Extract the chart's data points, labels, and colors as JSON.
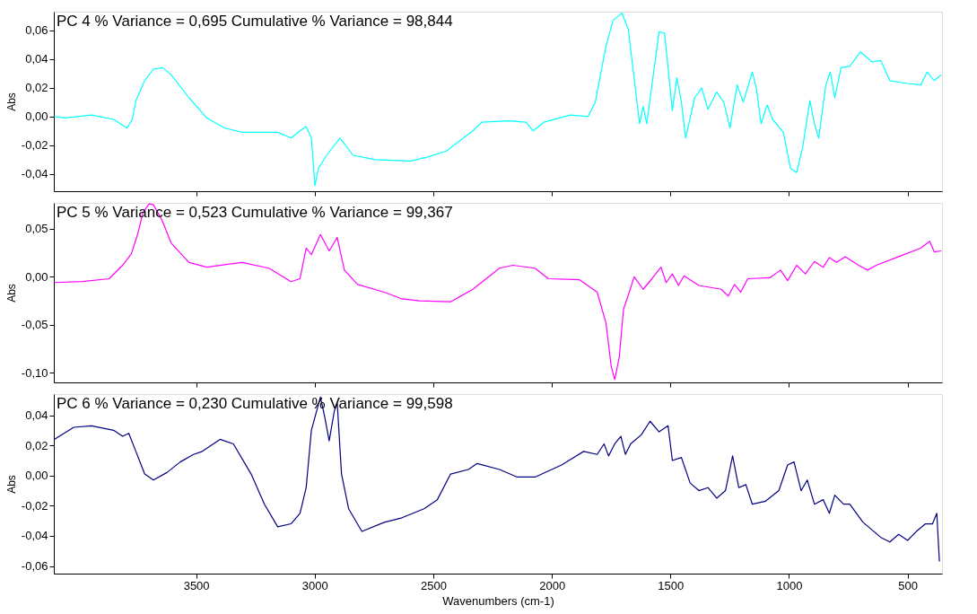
{
  "chart_data": [
    {
      "type": "line",
      "title": "PC 4  % Variance =    0,695 Cumulative % Variance =  98,844",
      "ylabel": "Abs",
      "tick_labels": "y",
      "grid": false,
      "marker": "none",
      "line_style": "solid",
      "xlim": [
        4100,
        355
      ],
      "xticks": [
        3500,
        3000,
        2500,
        2000,
        1500,
        1000,
        500
      ],
      "ylim": [
        -0.052,
        0.073
      ],
      "yticks": [
        {
          "value": 0.06,
          "label": "0,06"
        },
        {
          "value": 0.04,
          "label": "0,04"
        },
        {
          "value": 0.02,
          "label": "0,02"
        },
        {
          "value": 0.0,
          "label": "0,00"
        },
        {
          "value": -0.02,
          "label": "-0,02"
        },
        {
          "value": -0.04,
          "label": "-0,04"
        }
      ],
      "x": [
        4098,
        4050,
        3941,
        3848,
        3792,
        3769,
        3754,
        3717,
        3680,
        3642,
        3605,
        3530,
        3455,
        3380,
        3306,
        3156,
        3100,
        3062,
        3036,
        3014,
        2999,
        2984,
        2950,
        2894,
        2875,
        2838,
        2745,
        2595,
        2520,
        2445,
        2333,
        2296,
        2184,
        2109,
        2079,
        2034,
        1922,
        1847,
        1817,
        1772,
        1742,
        1705,
        1678,
        1641,
        1630,
        1615,
        1600,
        1578,
        1548,
        1525,
        1510,
        1492,
        1473,
        1454,
        1436,
        1398,
        1368,
        1342,
        1305,
        1275,
        1249,
        1219,
        1193,
        1155,
        1137,
        1118,
        1092,
        1069,
        1024,
        994,
        968,
        942,
        912,
        893,
        875,
        845,
        826,
        807,
        781,
        744,
        699,
        650,
        613,
        575,
        500,
        444,
        418,
        388,
        358
      ],
      "series": [
        {
          "color": "#00ffff",
          "values": [
            0.0,
            -0.001,
            0.001,
            -0.002,
            -0.008,
            -0.002,
            0.011,
            0.025,
            0.033,
            0.034,
            0.029,
            0.013,
            -0.001,
            -0.008,
            -0.011,
            -0.011,
            -0.015,
            -0.01,
            -0.007,
            -0.015,
            -0.048,
            -0.036,
            -0.027,
            -0.015,
            -0.019,
            -0.027,
            -0.03,
            -0.031,
            -0.028,
            -0.024,
            -0.01,
            -0.004,
            -0.003,
            -0.004,
            -0.01,
            -0.004,
            0.001,
            0.0,
            0.01,
            0.049,
            0.067,
            0.072,
            0.061,
            0.01,
            -0.005,
            0.007,
            -0.005,
            0.022,
            0.059,
            0.058,
            0.034,
            0.004,
            0.027,
            0.01,
            -0.015,
            0.013,
            0.02,
            0.005,
            0.017,
            0.01,
            -0.008,
            0.022,
            0.01,
            0.031,
            0.019,
            -0.005,
            0.008,
            -0.002,
            -0.011,
            -0.036,
            -0.039,
            -0.021,
            0.011,
            -0.005,
            -0.015,
            0.022,
            0.031,
            0.013,
            0.034,
            0.035,
            0.045,
            0.038,
            0.039,
            0.025,
            0.023,
            0.022,
            0.031,
            0.025,
            0.029
          ]
        }
      ]
    },
    {
      "type": "line",
      "title": "PC 5  % Variance =    0,523 Cumulative % Variance =  99,367",
      "ylabel": "Abs",
      "tick_labels": "y",
      "grid": false,
      "marker": "none",
      "line_style": "solid",
      "xlim": [
        4100,
        355
      ],
      "xticks": [
        3500,
        3000,
        2500,
        2000,
        1500,
        1000,
        500
      ],
      "ylim": [
        -0.11,
        0.077
      ],
      "yticks": [
        {
          "value": 0.05,
          "label": "0,05"
        },
        {
          "value": 0.0,
          "label": "0,00"
        },
        {
          "value": -0.05,
          "label": "-0,05"
        },
        {
          "value": -0.1,
          "label": "-0,10"
        }
      ],
      "x": [
        4098,
        3979,
        3867,
        3810,
        3773,
        3747,
        3724,
        3698,
        3680,
        3642,
        3605,
        3530,
        3455,
        3306,
        3193,
        3100,
        3062,
        3036,
        3014,
        2976,
        2939,
        2905,
        2875,
        2819,
        2707,
        2632,
        2558,
        2427,
        2333,
        2221,
        2165,
        2071,
        2015,
        1884,
        1809,
        1772,
        1750,
        1735,
        1716,
        1698,
        1679,
        1653,
        1615,
        1578,
        1540,
        1518,
        1492,
        1466,
        1443,
        1380,
        1286,
        1256,
        1230,
        1204,
        1174,
        1081,
        1036,
        1006,
        968,
        931,
        893,
        856,
        830,
        800,
        763,
        707,
        669,
        632,
        538,
        444,
        407,
        388,
        358
      ],
      "series": [
        {
          "color": "#ff00ff",
          "values": [
            -0.006,
            -0.005,
            -0.002,
            0.012,
            0.024,
            0.044,
            0.067,
            0.076,
            0.075,
            0.058,
            0.035,
            0.015,
            0.01,
            0.015,
            0.009,
            -0.005,
            -0.002,
            0.03,
            0.023,
            0.044,
            0.027,
            0.041,
            0.007,
            -0.008,
            -0.016,
            -0.023,
            -0.025,
            -0.026,
            -0.013,
            0.009,
            0.012,
            0.009,
            -0.002,
            -0.003,
            -0.016,
            -0.048,
            -0.093,
            -0.107,
            -0.084,
            -0.034,
            -0.02,
            0.0,
            -0.013,
            -0.002,
            0.01,
            -0.006,
            0.003,
            -0.009,
            0.001,
            -0.009,
            -0.013,
            -0.02,
            -0.008,
            -0.016,
            -0.002,
            -0.001,
            0.007,
            -0.004,
            0.012,
            0.003,
            0.016,
            0.01,
            0.02,
            0.015,
            0.021,
            0.012,
            0.007,
            0.012,
            0.021,
            0.03,
            0.037,
            0.026,
            0.027
          ]
        }
      ]
    },
    {
      "type": "line",
      "title": "PC 6  % Variance =    0,230 Cumulative % Variance =  99,598",
      "xlabel": "Wavenumbers (cm-1)",
      "ylabel": "Abs",
      "grid": false,
      "marker": "none",
      "line_style": "solid",
      "xlim": [
        4100,
        355
      ],
      "xticks": [
        3500,
        3000,
        2500,
        2000,
        1500,
        1000,
        500
      ],
      "ylim": [
        -0.065,
        0.054
      ],
      "yticks": [
        {
          "value": 0.04,
          "label": "0,04"
        },
        {
          "value": 0.02,
          "label": "0,02"
        },
        {
          "value": 0.0,
          "label": "0,00"
        },
        {
          "value": -0.02,
          "label": "-0,02"
        },
        {
          "value": -0.04,
          "label": "-0,04"
        },
        {
          "value": -0.06,
          "label": "-0,06"
        }
      ],
      "x": [
        4098,
        4016,
        3941,
        3848,
        3810,
        3784,
        3754,
        3717,
        3680,
        3623,
        3567,
        3511,
        3474,
        3399,
        3343,
        3268,
        3212,
        3156,
        3100,
        3062,
        3036,
        3014,
        2988,
        2976,
        2958,
        2939,
        2917,
        2905,
        2887,
        2857,
        2801,
        2707,
        2632,
        2539,
        2483,
        2427,
        2352,
        2315,
        2221,
        2146,
        2071,
        1959,
        1866,
        1809,
        1780,
        1761,
        1735,
        1709,
        1690,
        1668,
        1623,
        1586,
        1548,
        1510,
        1492,
        1454,
        1417,
        1380,
        1342,
        1305,
        1268,
        1238,
        1212,
        1182,
        1155,
        1099,
        1043,
        1006,
        979,
        949,
        923,
        893,
        856,
        830,
        807,
        770,
        744,
        688,
        613,
        575,
        538,
        500,
        463,
        425,
        395,
        377,
        366
      ],
      "series": [
        {
          "color": "#000080",
          "values": [
            0.024,
            0.032,
            0.033,
            0.03,
            0.026,
            0.028,
            0.016,
            0.001,
            -0.003,
            0.002,
            0.009,
            0.014,
            0.016,
            0.024,
            0.021,
            0.001,
            -0.019,
            -0.034,
            -0.032,
            -0.025,
            -0.008,
            0.03,
            0.045,
            0.052,
            0.039,
            0.023,
            0.043,
            0.048,
            0.001,
            -0.022,
            -0.037,
            -0.031,
            -0.028,
            -0.022,
            -0.016,
            0.001,
            0.004,
            0.008,
            0.004,
            -0.001,
            -0.001,
            0.007,
            0.016,
            0.014,
            0.021,
            0.013,
            0.021,
            0.026,
            0.014,
            0.021,
            0.027,
            0.036,
            0.029,
            0.033,
            0.01,
            0.012,
            -0.005,
            -0.01,
            -0.008,
            -0.015,
            -0.01,
            0.013,
            -0.008,
            -0.006,
            -0.019,
            -0.017,
            -0.01,
            0.007,
            0.009,
            -0.01,
            -0.003,
            -0.019,
            -0.016,
            -0.025,
            -0.013,
            -0.019,
            -0.019,
            -0.031,
            -0.041,
            -0.044,
            -0.039,
            -0.043,
            -0.037,
            -0.032,
            -0.032,
            -0.025,
            -0.057
          ]
        }
      ]
    }
  ]
}
